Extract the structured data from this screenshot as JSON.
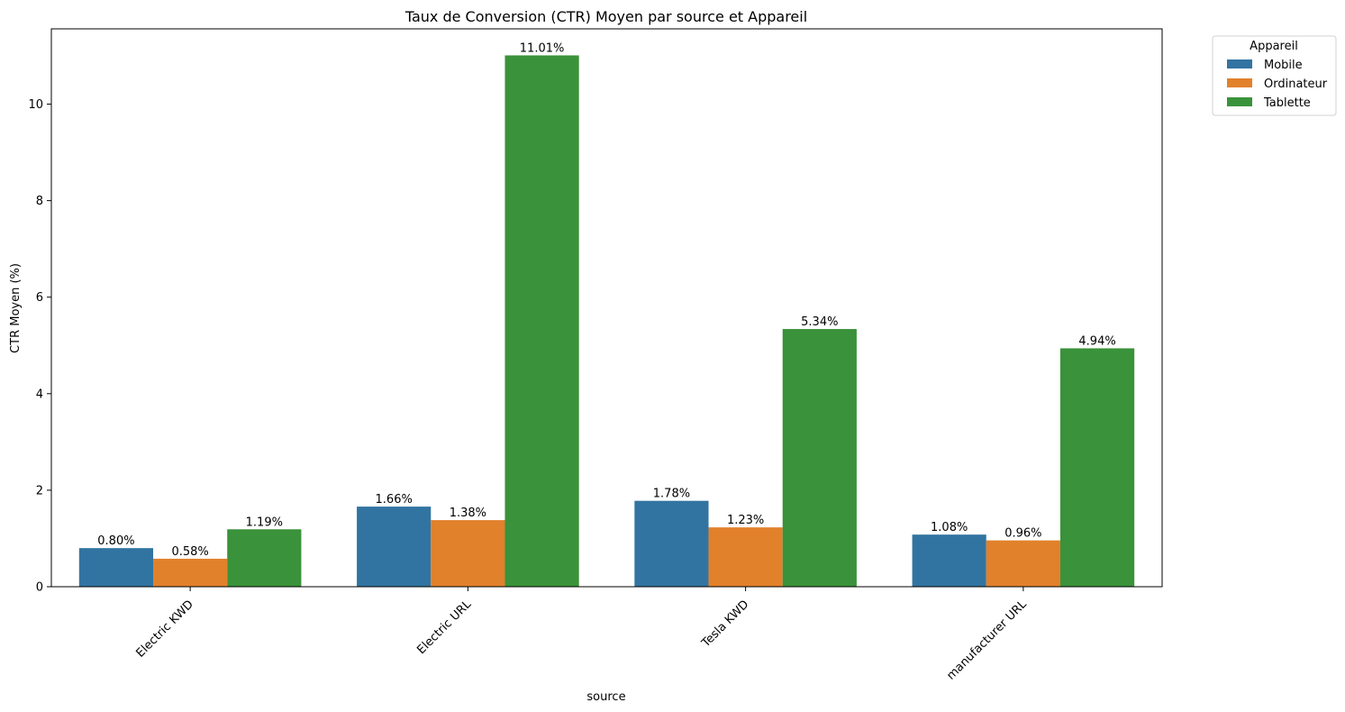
{
  "chart_data": {
    "type": "bar",
    "title": "Taux de Conversion (CTR) Moyen par source et Appareil",
    "xlabel": "source",
    "ylabel": "CTR Moyen (%)",
    "ylim": [
      0,
      11.56
    ],
    "yticks": [
      0,
      2,
      4,
      6,
      8,
      10
    ],
    "categories": [
      "Electric KWD",
      "Electric URL",
      "Tesla KWD",
      "manufacturer URL"
    ],
    "series": [
      {
        "name": "Mobile",
        "color": "#3274a1",
        "values": [
          0.8,
          1.66,
          1.78,
          1.08
        ],
        "labels": [
          "0.80%",
          "1.66%",
          "1.78%",
          "1.08%"
        ]
      },
      {
        "name": "Ordinateur",
        "color": "#e1812c",
        "values": [
          0.58,
          1.38,
          1.23,
          0.96
        ],
        "labels": [
          "0.58%",
          "1.38%",
          "1.23%",
          "0.96%"
        ]
      },
      {
        "name": "Tablette",
        "color": "#3a923a",
        "values": [
          1.19,
          11.01,
          5.34,
          4.94
        ],
        "labels": [
          "1.19%",
          "11.01%",
          "5.34%",
          "4.94%"
        ]
      }
    ],
    "legend": {
      "title": "Appareil",
      "placement": "outside-top-right"
    },
    "grid": false
  }
}
